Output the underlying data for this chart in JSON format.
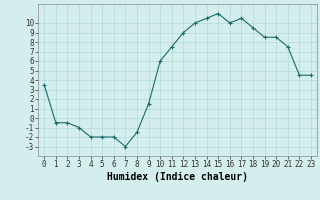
{
  "x": [
    0,
    1,
    2,
    3,
    4,
    5,
    6,
    7,
    8,
    9,
    10,
    11,
    12,
    13,
    14,
    15,
    16,
    17,
    18,
    19,
    20,
    21,
    22,
    23
  ],
  "y": [
    3.5,
    -0.5,
    -0.5,
    -1.0,
    -2.0,
    -2.0,
    -2.0,
    -3.0,
    -1.5,
    1.5,
    6.0,
    7.5,
    9.0,
    10.0,
    10.5,
    11.0,
    10.0,
    10.5,
    9.5,
    8.5,
    8.5,
    7.5,
    4.5,
    4.5
  ],
  "line_color": "#1a6b6b",
  "marker": "+",
  "marker_size": 3,
  "marker_linewidth": 0.8,
  "line_width": 0.8,
  "bg_color": "#d4eeee",
  "grid_color": "#aad4d4",
  "xlabel": "Humidex (Indice chaleur)",
  "xlim": [
    -0.5,
    23.5
  ],
  "ylim": [
    -4,
    12
  ],
  "yticks": [
    -3,
    -2,
    -1,
    0,
    1,
    2,
    3,
    4,
    5,
    6,
    7,
    8,
    9,
    10
  ],
  "xticks": [
    0,
    1,
    2,
    3,
    4,
    5,
    6,
    7,
    8,
    9,
    10,
    11,
    12,
    13,
    14,
    15,
    16,
    17,
    18,
    19,
    20,
    21,
    22,
    23
  ],
  "tick_fontsize": 5.5,
  "label_fontsize": 7,
  "label_fontweight": "bold",
  "spine_color": "#888888",
  "tick_color": "#333333"
}
